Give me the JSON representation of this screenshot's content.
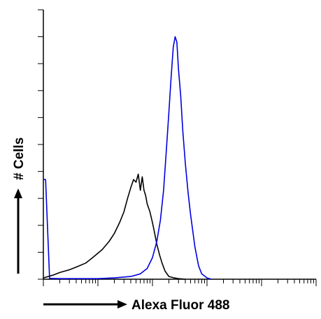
{
  "chart_data": {
    "type": "line",
    "title": "",
    "xlabel": "Alexa Fluor 488",
    "ylabel": "# Cells",
    "xscale": "log",
    "xlim": [
      1,
      100000
    ],
    "ylim": [
      0,
      100
    ],
    "grid": false,
    "legend": "none",
    "x_tick_labels": [],
    "y_tick_labels": [],
    "series": [
      {
        "color": "#000000",
        "x": [
          1,
          1.5,
          2,
          3,
          4,
          6,
          8,
          12,
          16,
          20,
          25,
          30,
          35,
          40,
          45,
          50,
          55,
          60,
          65,
          70,
          75,
          80,
          90,
          100,
          110,
          120,
          135,
          150,
          170,
          200,
          250,
          300,
          400
        ],
        "y": [
          0.5,
          1.5,
          2.5,
          3.5,
          4.5,
          6,
          8,
          11,
          14,
          17,
          21,
          25,
          30,
          34,
          37,
          36,
          39,
          33,
          38,
          33,
          31,
          28,
          25,
          21,
          17,
          13,
          9,
          6,
          3,
          1,
          0.5,
          0.2,
          0
        ]
      },
      {
        "color": "#0000e0",
        "x": [
          1,
          1.1,
          1.3,
          2,
          5,
          10,
          20,
          40,
          60,
          80,
          100,
          120,
          140,
          160,
          180,
          200,
          220,
          240,
          260,
          280,
          300,
          330,
          360,
          400,
          450,
          500,
          600,
          700,
          800,
          1000,
          1200
        ],
        "y": [
          37,
          37,
          0.3,
          0.2,
          0.2,
          0.2,
          0.5,
          1,
          2,
          4,
          8,
          14,
          22,
          33,
          48,
          62,
          75,
          86,
          90,
          88,
          78,
          68,
          55,
          43,
          32,
          24,
          12,
          5,
          2,
          0.5,
          0
        ]
      }
    ]
  }
}
